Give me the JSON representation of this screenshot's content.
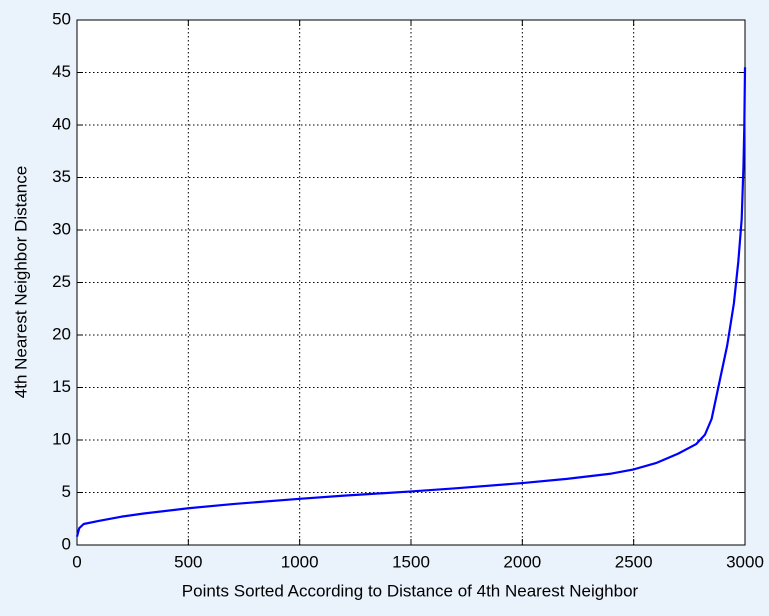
{
  "chart_data": {
    "type": "line",
    "x_label": "Points Sorted According to Distance of 4th Nearest Neighbor",
    "y_label": "4th Nearest Neighbor Distance",
    "x": [
      0,
      10,
      30,
      100,
      200,
      300,
      500,
      700,
      1000,
      1200,
      1500,
      1700,
      2000,
      2200,
      2400,
      2500,
      2600,
      2700,
      2780,
      2820,
      2850,
      2880,
      2920,
      2950,
      2970,
      2985,
      2993,
      2997,
      3000
    ],
    "values": [
      0.8,
      1.6,
      2.0,
      2.3,
      2.7,
      3.0,
      3.5,
      3.9,
      4.4,
      4.7,
      5.1,
      5.4,
      5.9,
      6.3,
      6.8,
      7.2,
      7.8,
      8.7,
      9.6,
      10.5,
      12,
      15,
      19,
      23,
      27,
      31,
      36,
      40,
      45.5
    ],
    "color": "#0000ff",
    "xlim": [
      0,
      3000
    ],
    "xticks": [
      0,
      500,
      1000,
      1500,
      2000,
      2500,
      3000
    ],
    "ylim": [
      0,
      50
    ],
    "yticks": [
      0,
      5,
      10,
      15,
      20,
      25,
      30,
      35,
      40,
      45,
      50
    ],
    "grid": true
  }
}
